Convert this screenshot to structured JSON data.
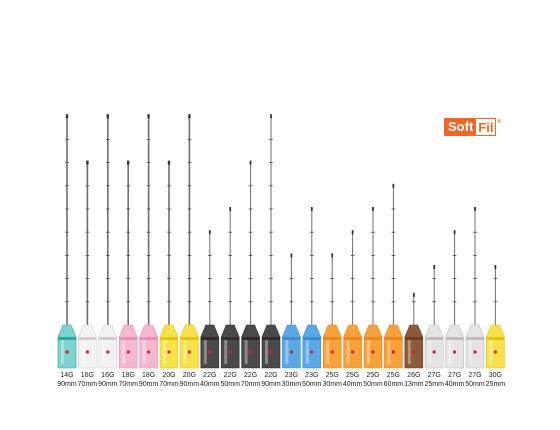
{
  "brand": {
    "part1": "Soft",
    "part2": "Fil",
    "mark": "®",
    "color": "#f26522"
  },
  "needles": [
    {
      "gauge": "14G",
      "length": "90mm",
      "hub": "#7fd3cf",
      "band": "#2aa7a0",
      "len_mm": 90
    },
    {
      "gauge": "16G",
      "length": "70mm",
      "hub": "#f2f2f2",
      "band": "#cfcfcf",
      "len_mm": 70
    },
    {
      "gauge": "16G",
      "length": "90mm",
      "hub": "#f2f2f2",
      "band": "#cfcfcf",
      "len_mm": 90
    },
    {
      "gauge": "18G",
      "length": "70mm",
      "hub": "#f3b8d0",
      "band": "#e58fb3",
      "len_mm": 70
    },
    {
      "gauge": "18G",
      "length": "90mm",
      "hub": "#f3b8d0",
      "band": "#e58fb3",
      "len_mm": 90
    },
    {
      "gauge": "20G",
      "length": "70mm",
      "hub": "#f7e24a",
      "band": "#e3c414",
      "len_mm": 70
    },
    {
      "gauge": "20G",
      "length": "90mm",
      "hub": "#f7e24a",
      "band": "#e3c414",
      "len_mm": 90
    },
    {
      "gauge": "22G",
      "length": "40mm",
      "hub": "#4a4a4a",
      "band": "#2e2e2e",
      "len_mm": 40
    },
    {
      "gauge": "22G",
      "length": "50mm",
      "hub": "#4a4a4a",
      "band": "#2e2e2e",
      "len_mm": 50
    },
    {
      "gauge": "22G",
      "length": "70mm",
      "hub": "#4a4a4a",
      "band": "#2e2e2e",
      "len_mm": 70
    },
    {
      "gauge": "22G",
      "length": "90mm",
      "hub": "#4a4a4a",
      "band": "#2e2e2e",
      "len_mm": 90
    },
    {
      "gauge": "23G",
      "length": "30mm",
      "hub": "#5aa9e6",
      "band": "#3b8fd1",
      "len_mm": 30
    },
    {
      "gauge": "23G",
      "length": "50mm",
      "hub": "#5aa9e6",
      "band": "#3b8fd1",
      "len_mm": 50
    },
    {
      "gauge": "25G",
      "length": "30mm",
      "hub": "#f7a13a",
      "band": "#e8871b",
      "len_mm": 30
    },
    {
      "gauge": "25G",
      "length": "40mm",
      "hub": "#f7a13a",
      "band": "#e8871b",
      "len_mm": 40
    },
    {
      "gauge": "25G",
      "length": "50mm",
      "hub": "#f7a13a",
      "band": "#e8871b",
      "len_mm": 50
    },
    {
      "gauge": "25G",
      "length": "60mm",
      "hub": "#f7a13a",
      "band": "#e8871b",
      "len_mm": 60
    },
    {
      "gauge": "26G",
      "length": "13mm",
      "hub": "#8a5a3a",
      "band": "#6b4226",
      "len_mm": 13
    },
    {
      "gauge": "27G",
      "length": "25mm",
      "hub": "#e4e4e4",
      "band": "#bdbdbd",
      "len_mm": 25
    },
    {
      "gauge": "27G",
      "length": "40mm",
      "hub": "#e4e4e4",
      "band": "#bdbdbd",
      "len_mm": 40
    },
    {
      "gauge": "27G",
      "length": "50mm",
      "hub": "#e4e4e4",
      "band": "#bdbdbd",
      "len_mm": 50
    },
    {
      "gauge": "30G",
      "length": "25mm",
      "hub": "#f7e24a",
      "band": "#e3c414",
      "len_mm": 25
    }
  ]
}
